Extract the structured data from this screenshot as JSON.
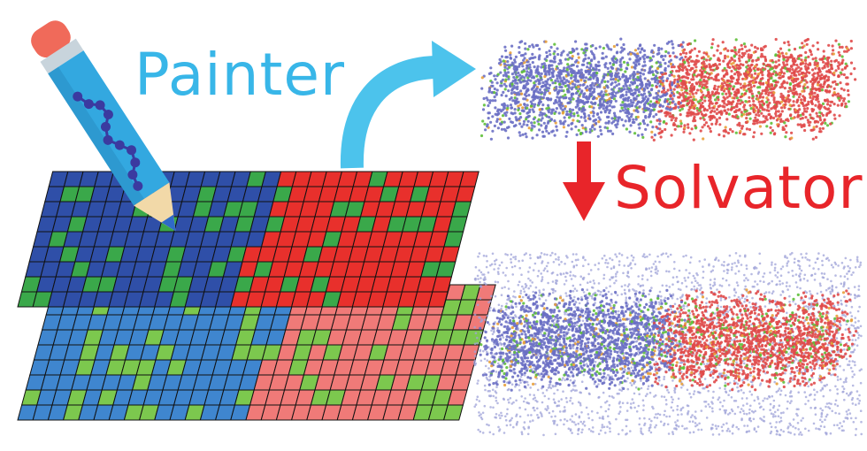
{
  "labels": {
    "painter": "Painter",
    "solvator": "Solvator"
  },
  "colors": {
    "painter_text": "#38b6e8",
    "solvator_text": "#e8252a",
    "curved_arrow": "#4cc3ec",
    "down_arrow": "#e8252a",
    "grid_lines": "#111111",
    "top_sheet_left": "#2f4fa8",
    "top_sheet_right": "#e8302c",
    "top_sheet_dots": "#3aa84a",
    "bottom_sheet_left": "#3f86cf",
    "bottom_sheet_right": "#f07a78",
    "bottom_sheet_dots": "#7cc84e",
    "atoms_blue": "#6a6fc4",
    "atoms_red": "#e04a4a",
    "atoms_green": "#5fc03a",
    "atoms_orange": "#e8a03a",
    "solvent_atoms": "#9fa3d8",
    "pencil_body": "#33a8e0",
    "pencil_eraser": "#f06a5a",
    "pencil_band": "#c8d4dc",
    "pencil_wood": "#f2d9a8",
    "pencil_lead": "#2f6ac8",
    "pencil_chain": "#3b3aa0"
  },
  "icons": {
    "pencil": "pencil-icon",
    "curved_arrow": "curved-arrow-icon",
    "down_arrow": "down-arrow-icon"
  }
}
